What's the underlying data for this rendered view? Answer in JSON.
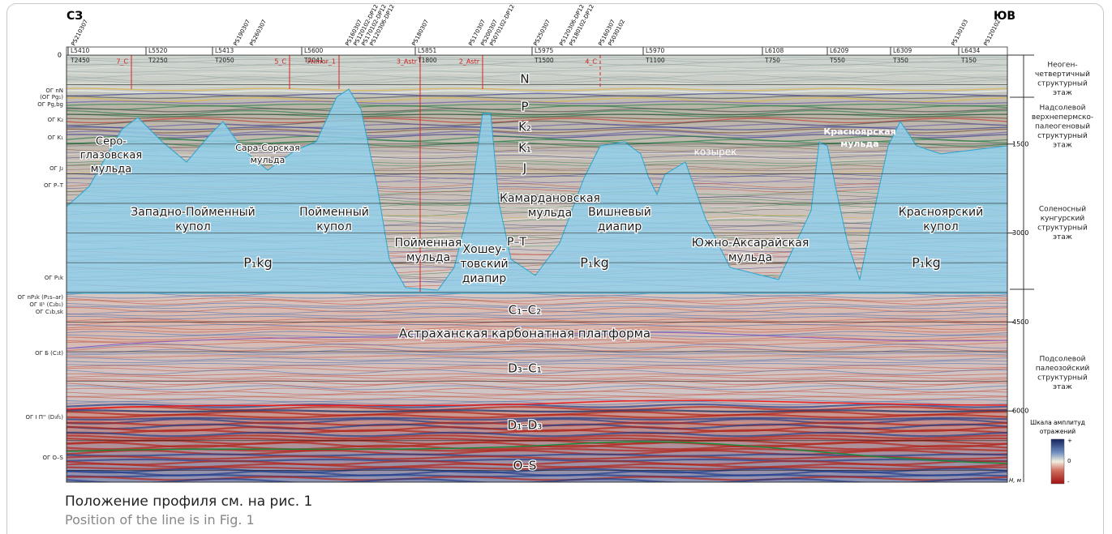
{
  "header": {
    "left": "СЗ",
    "right": "ЮВ"
  },
  "wells": [
    "PS210307",
    "PS190307",
    "PS260307",
    "PS160307",
    "PS120102-DP12",
    "PS170102-DP12",
    "PS120306-DP12",
    "PS180307",
    "PS170307",
    "PS200307",
    "PS070102-DP12",
    "PS250307",
    "PS120306-DP12",
    "PS180102-DP12",
    "PS160307",
    "PS030102",
    "PS130103",
    "PS120102"
  ],
  "lines": [
    "L5410",
    "T2450",
    "L5520",
    "T2250",
    "L5413",
    "T2050",
    "L5600",
    "T2041",
    "L5851",
    "T1800",
    "L5975",
    "T1500",
    "L5970",
    "T1100",
    "L6108",
    "T750",
    "L6209",
    "T550",
    "L6309",
    "T350",
    "L6434",
    "T150"
  ],
  "markers": [
    "7_C",
    "5_C",
    "Primor_1",
    "3_Astr",
    "2_Astr",
    "4_C"
  ],
  "horizons": [
    "ОГ nN",
    "(ОГ Pg₁)",
    "ОГ Pg,bg",
    "ОГ K₂",
    "ОГ K₁",
    "ОГ J₂",
    "ОГ P–T",
    "ОГ P₁k",
    "ОГ nP₁k (P₁s–ar)",
    "ОГ II¹ (C₂b₁)",
    "ОГ C₁b,sk",
    "ОГ Б (C₁t)",
    "ОГ I  П'' (D₃f₁)",
    "ОГ O–S"
  ],
  "depth_axis": {
    "ylim": [
      0,
      7200
    ],
    "yticks": [
      0,
      1500,
      3000,
      4500,
      6000
    ],
    "unit": "Н, м"
  },
  "stages": [
    [
      "Неоген-",
      "четвертичный",
      "структурный",
      "этаж"
    ],
    [
      "Надсолевой",
      "верхнепермско-",
      "палеогеновый",
      "структурный",
      "этаж"
    ],
    [
      "Соленосный",
      "кунгурский",
      "структурный",
      "этаж"
    ],
    [
      "Подсолевой",
      "палеозойский",
      "структурный",
      "этаж"
    ]
  ],
  "amplitude_scale": {
    "title": [
      "Шкала амплитуд",
      "отражений"
    ],
    "labels": [
      "+",
      "0",
      "-"
    ]
  },
  "units": [
    [
      "N"
    ],
    [
      "P"
    ],
    [
      "K₂"
    ],
    [
      "K₁"
    ],
    [
      "J"
    ],
    [
      "Серо-",
      "глазовская",
      "мульда"
    ],
    [
      "Сара-Сорская",
      "мульда"
    ],
    [
      "Западно-Пойменный",
      "купол"
    ],
    [
      "Пойменный",
      "купол"
    ],
    [
      "P₁kg"
    ],
    [
      "Пойменная",
      "мульда"
    ],
    [
      "Хошеу-",
      "товский",
      "диапир"
    ],
    [
      "P–T"
    ],
    [
      "Камардановская",
      "мульда"
    ],
    [
      "Вишневый",
      "диапир"
    ],
    [
      "P₁kg"
    ],
    [
      "козырек"
    ],
    [
      "Южно-Аксарайская",
      "мульда"
    ],
    [
      "Красноярская",
      "мульда"
    ],
    [
      "Красноярский",
      "купол"
    ],
    [
      "P₁kg"
    ],
    [
      "C₁–C₂"
    ],
    [
      "Астраханская   карбонатная   платформа"
    ],
    [
      "D₃–C₁"
    ],
    [
      "D₁–D₃"
    ],
    [
      "O–S"
    ]
  ],
  "caption": {
    "ru": "Положение профиля см. на рис. 1",
    "en": "Position of the line is in Fig. 1"
  }
}
